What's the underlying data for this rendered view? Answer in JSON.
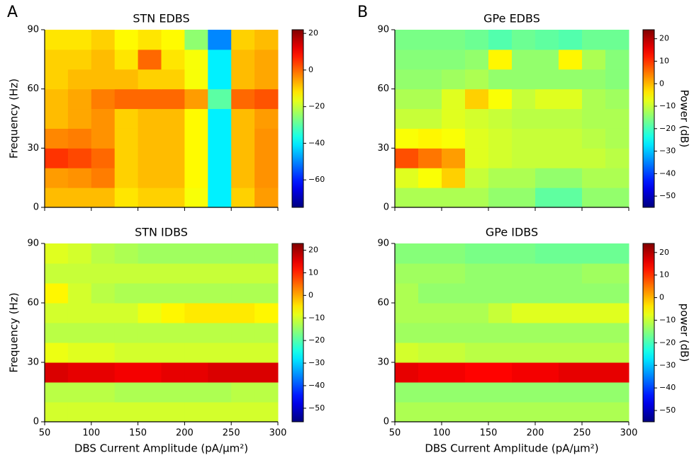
{
  "chart_data": [
    {
      "type": "heatmap",
      "panel_label": "A",
      "title": "STN EDBS",
      "ylabel": "Frequency (Hz)",
      "colormap": "jet",
      "x_edges": [
        50,
        75,
        100,
        125,
        150,
        175,
        200,
        225,
        250,
        275,
        300
      ],
      "y_edges": [
        0,
        10,
        20,
        30,
        40,
        50,
        60,
        70,
        80,
        90
      ],
      "z": [
        [
          -8,
          -8,
          -8,
          -12,
          -10,
          -10,
          -15,
          -40,
          -10,
          -5
        ],
        [
          -5,
          -4,
          -2,
          -10,
          -8,
          -8,
          -14,
          -40,
          -8,
          -4
        ],
        [
          5,
          3,
          0,
          -10,
          -8,
          -8,
          -14,
          -40,
          -8,
          -4
        ],
        [
          -3,
          -2,
          -4,
          -10,
          -8,
          -8,
          -14,
          -40,
          -8,
          -4
        ],
        [
          -8,
          -6,
          -4,
          -10,
          -8,
          -8,
          -14,
          -40,
          -8,
          -5
        ],
        [
          -8,
          -6,
          -2,
          0,
          0,
          0,
          -5,
          -30,
          0,
          2
        ],
        [
          -10,
          -8,
          -8,
          -8,
          -10,
          -10,
          -15,
          -40,
          -8,
          -6
        ],
        [
          -10,
          -10,
          -8,
          -12,
          0,
          -12,
          -15,
          -40,
          -8,
          -6
        ],
        [
          -12,
          -12,
          -10,
          -14,
          -12,
          -14,
          -25,
          -50,
          -10,
          -8
        ]
      ],
      "xlim": [
        50,
        300
      ],
      "ylim": [
        0,
        90
      ],
      "xticks": [
        50,
        100,
        150,
        200,
        250,
        300
      ],
      "show_xtick_labels": false,
      "yticks": [
        0,
        30,
        60,
        90
      ],
      "clim": [
        -75,
        22
      ],
      "cticks": [
        20,
        0,
        {
          "value": -20,
          "label": "−20"
        },
        {
          "value": -40,
          "label": "−40"
        },
        {
          "value": -60,
          "label": "−60"
        }
      ]
    },
    {
      "type": "heatmap",
      "panel_label": "B",
      "title": "GPe EDBS",
      "colorbar_label": "Power (dB)",
      "colormap": "jet",
      "x_edges": [
        50,
        75,
        100,
        125,
        150,
        175,
        200,
        225,
        250,
        275,
        300
      ],
      "y_edges": [
        0,
        10,
        20,
        30,
        40,
        50,
        60,
        70,
        80,
        90
      ],
      "z": [
        [
          -12,
          -12,
          -12,
          -12,
          -14,
          -14,
          -18,
          -18,
          -14,
          -14
        ],
        [
          -8,
          -6,
          -2,
          -10,
          -12,
          -12,
          -14,
          -14,
          -12,
          -12
        ],
        [
          8,
          5,
          2,
          -8,
          -9,
          -10,
          -10,
          -10,
          -10,
          -11
        ],
        [
          -6,
          -5,
          -6,
          -8,
          -9,
          -10,
          -10,
          -10,
          -11,
          -12
        ],
        [
          -10,
          -10,
          -8,
          -9,
          -10,
          -11,
          -11,
          -11,
          -12,
          -12
        ],
        [
          -12,
          -12,
          -8,
          -2,
          -6,
          -10,
          -8,
          -8,
          -12,
          -13
        ],
        [
          -14,
          -14,
          -13,
          -12,
          -14,
          -14,
          -14,
          -14,
          -14,
          -15
        ],
        [
          -15,
          -15,
          -15,
          -14,
          -5,
          -14,
          -14,
          -5,
          -12,
          -15
        ],
        [
          -16,
          -16,
          -16,
          -17,
          -19,
          -17,
          -18,
          -19,
          -17,
          -17
        ]
      ],
      "xlim": [
        50,
        300
      ],
      "ylim": [
        0,
        90
      ],
      "xticks": [
        50,
        100,
        150,
        200,
        250,
        300
      ],
      "show_xtick_labels": false,
      "yticks": [
        0,
        30,
        60,
        90
      ],
      "clim": [
        -55,
        24
      ],
      "cticks": [
        20,
        10,
        0,
        {
          "value": -10,
          "label": "−10"
        },
        {
          "value": -20,
          "label": "−20"
        },
        {
          "value": -30,
          "label": "−30"
        },
        {
          "value": -40,
          "label": "−40"
        },
        {
          "value": -50,
          "label": "−50"
        }
      ]
    },
    {
      "type": "heatmap",
      "title": "STN IDBS",
      "ylabel": "Frequency (Hz)",
      "xlabel": "DBS Current Amplitude (pA/μm²)",
      "colormap": "jet",
      "x_edges": [
        50,
        75,
        100,
        125,
        150,
        175,
        200,
        225,
        250,
        275,
        300
      ],
      "y_edges": [
        0,
        10,
        20,
        30,
        40,
        50,
        60,
        70,
        80,
        90
      ],
      "z": [
        [
          -10,
          -10,
          -10,
          -10,
          -10,
          -10,
          -10,
          -10,
          -10,
          -10
        ],
        [
          -12,
          -12,
          -12,
          -13,
          -13,
          -13,
          -13,
          -13,
          -12,
          -12
        ],
        [
          16,
          15,
          15,
          14,
          14,
          15,
          15,
          16,
          16,
          16
        ],
        [
          -8,
          -9,
          -9,
          -10,
          -10,
          -10,
          -10,
          -10,
          -10,
          -10
        ],
        [
          -12,
          -12,
          -12,
          -12,
          -12,
          -12,
          -12,
          -12,
          -12,
          -12
        ],
        [
          -10,
          -10,
          -10,
          -10,
          -8,
          -6,
          -5,
          -5,
          -5,
          -6
        ],
        [
          -6,
          -10,
          -12,
          -13,
          -13,
          -13,
          -13,
          -13,
          -13,
          -13
        ],
        [
          -11,
          -11,
          -11,
          -11,
          -11,
          -11,
          -11,
          -11,
          -11,
          -11
        ],
        [
          -9,
          -10,
          -12,
          -13,
          -14,
          -14,
          -14,
          -14,
          -14,
          -14
        ]
      ],
      "xlim": [
        50,
        300
      ],
      "ylim": [
        0,
        90
      ],
      "xticks": [
        50,
        100,
        150,
        200,
        250,
        300
      ],
      "show_xtick_labels": true,
      "yticks": [
        0,
        30,
        60,
        90
      ],
      "clim": [
        -56,
        23
      ],
      "cticks": [
        20,
        10,
        0,
        {
          "value": -10,
          "label": "−10"
        },
        {
          "value": -20,
          "label": "−20"
        },
        {
          "value": -30,
          "label": "−30"
        },
        {
          "value": -40,
          "label": "−40"
        },
        {
          "value": -50,
          "label": "−50"
        }
      ]
    },
    {
      "type": "heatmap",
      "title": "GPe IDBS",
      "xlabel": "DBS Current Amplitude (pA/μm²)",
      "colorbar_label": "power (dB)",
      "colormap": "jet",
      "x_edges": [
        50,
        75,
        100,
        125,
        150,
        175,
        200,
        225,
        250,
        275,
        300
      ],
      "y_edges": [
        0,
        10,
        20,
        30,
        40,
        50,
        60,
        70,
        80,
        90
      ],
      "z": [
        [
          -12,
          -12,
          -12,
          -12,
          -12,
          -12,
          -12,
          -12,
          -12,
          -12
        ],
        [
          -14,
          -14,
          -14,
          -14,
          -14,
          -14,
          -14,
          -14,
          -14,
          -14
        ],
        [
          16,
          15,
          15,
          14,
          14,
          15,
          15,
          16,
          16,
          16
        ],
        [
          -9,
          -10,
          -10,
          -11,
          -11,
          -11,
          -11,
          -11,
          -11,
          -11
        ],
        [
          -13,
          -13,
          -13,
          -13,
          -13,
          -13,
          -13,
          -13,
          -13,
          -13
        ],
        [
          -12,
          -12,
          -12,
          -12,
          -10,
          -8,
          -8,
          -8,
          -8,
          -8
        ],
        [
          -12,
          -14,
          -14,
          -14,
          -14,
          -14,
          -14,
          -14,
          -14,
          -14
        ],
        [
          -13,
          -13,
          -13,
          -14,
          -14,
          -14,
          -14,
          -14,
          -13,
          -13
        ],
        [
          -15,
          -15,
          -15,
          -16,
          -16,
          -16,
          -17,
          -17,
          -17,
          -17
        ]
      ],
      "xlim": [
        50,
        300
      ],
      "ylim": [
        0,
        90
      ],
      "xticks": [
        50,
        100,
        150,
        200,
        250,
        300
      ],
      "show_xtick_labels": true,
      "yticks": [
        0,
        30,
        60,
        90
      ],
      "clim": [
        -55,
        24
      ],
      "cticks": [
        20,
        10,
        0,
        {
          "value": -10,
          "label": "−10"
        },
        {
          "value": -20,
          "label": "−20"
        },
        {
          "value": -30,
          "label": "−30"
        },
        {
          "value": -40,
          "label": "−40"
        },
        {
          "value": -50,
          "label": "−50"
        }
      ]
    }
  ]
}
